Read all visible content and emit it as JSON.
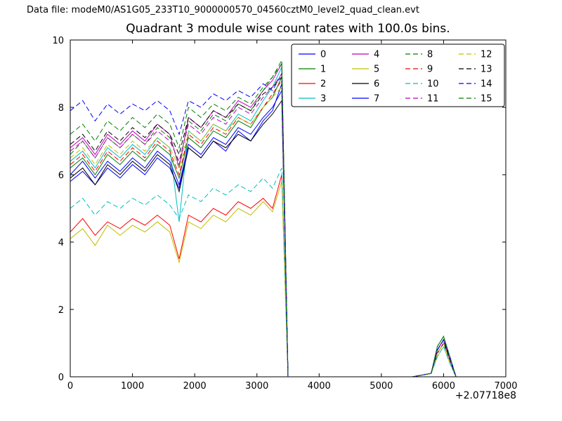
{
  "header": {
    "data_file_label": "Data file: modeM0/AS1G05_233T10_9000000570_04560cztM0_level2_quad_clean.evt"
  },
  "chart_data": {
    "type": "line",
    "title": "Quadrant 3 module wise count rates with 100.0s bins.",
    "xlabel": "",
    "ylabel": "",
    "x_offset_label": "+2.07718e8",
    "xlim": [
      0,
      7000
    ],
    "ylim": [
      0,
      10
    ],
    "xticks": [
      0,
      1000,
      2000,
      3000,
      4000,
      5000,
      6000,
      7000
    ],
    "yticks": [
      0,
      2,
      4,
      6,
      8,
      10
    ],
    "grid": false,
    "legend_position": "upper center-right",
    "legend_columns": 4,
    "axes_color": "#000000",
    "background_color": "#ffffff",
    "x": [
      0,
      200,
      400,
      600,
      800,
      1000,
      1200,
      1400,
      1600,
      1750,
      1900,
      2100,
      2300,
      2500,
      2700,
      2900,
      3100,
      3250,
      3400,
      3500,
      4000,
      4500,
      5000,
      5500,
      5800,
      5900,
      6000,
      6100,
      6200
    ],
    "series": [
      {
        "name": "0",
        "color": "#0000ff",
        "dash": "solid",
        "values": [
          5.8,
          6.1,
          5.7,
          6.2,
          5.9,
          6.3,
          6.0,
          6.5,
          6.2,
          5.6,
          6.8,
          6.5,
          7.0,
          6.7,
          7.3,
          7.0,
          7.6,
          7.9,
          8.7,
          0,
          0,
          0,
          0,
          0,
          0.1,
          0.8,
          1.1,
          0.5,
          0
        ]
      },
      {
        "name": "1",
        "color": "#008000",
        "dash": "solid",
        "values": [
          6.2,
          6.5,
          6.0,
          6.6,
          6.3,
          6.7,
          6.4,
          6.9,
          6.6,
          5.9,
          7.1,
          6.8,
          7.3,
          7.1,
          7.6,
          7.4,
          8.0,
          8.3,
          8.9,
          0,
          0,
          0,
          0,
          0,
          0.1,
          0.9,
          1.2,
          0.6,
          0
        ]
      },
      {
        "name": "2",
        "color": "#ff0000",
        "dash": "solid",
        "values": [
          4.3,
          4.7,
          4.2,
          4.6,
          4.4,
          4.7,
          4.5,
          4.8,
          4.5,
          3.5,
          4.8,
          4.6,
          5.0,
          4.8,
          5.2,
          5.0,
          5.3,
          5.0,
          6.0,
          0,
          0,
          0,
          0,
          0,
          0.1,
          0.7,
          1.0,
          0.5,
          0
        ]
      },
      {
        "name": "3",
        "color": "#00bfbf",
        "dash": "solid",
        "values": [
          6.4,
          6.7,
          6.2,
          6.8,
          6.5,
          6.9,
          6.6,
          7.1,
          6.8,
          4.6,
          7.3,
          7.0,
          7.5,
          7.3,
          7.8,
          7.6,
          8.2,
          8.6,
          9.2,
          0,
          0,
          0,
          0,
          0,
          0.1,
          0.9,
          1.2,
          0.6,
          0
        ]
      },
      {
        "name": "4",
        "color": "#bf00bf",
        "dash": "solid",
        "values": [
          6.8,
          7.1,
          6.6,
          7.2,
          6.9,
          7.3,
          7.0,
          7.5,
          7.2,
          6.2,
          7.7,
          7.4,
          7.9,
          7.7,
          8.2,
          8.0,
          8.5,
          8.8,
          9.3,
          0,
          0,
          0,
          0,
          0,
          0.1,
          0.8,
          1.1,
          0.6,
          0
        ]
      },
      {
        "name": "5",
        "color": "#bfbf00",
        "dash": "solid",
        "values": [
          4.1,
          4.4,
          3.9,
          4.5,
          4.2,
          4.5,
          4.3,
          4.6,
          4.3,
          3.4,
          4.6,
          4.4,
          4.8,
          4.6,
          5.0,
          4.8,
          5.2,
          4.9,
          5.8,
          0,
          0,
          0,
          0,
          0,
          0.1,
          0.6,
          0.9,
          0.4,
          0
        ]
      },
      {
        "name": "6",
        "color": "#000000",
        "dash": "solid",
        "values": [
          5.9,
          6.2,
          5.7,
          6.3,
          6.0,
          6.4,
          6.1,
          6.6,
          6.3,
          5.5,
          6.8,
          6.5,
          7.0,
          6.8,
          7.2,
          7.0,
          7.5,
          7.8,
          8.2,
          0,
          0,
          0,
          0,
          0,
          0.1,
          0.7,
          1.0,
          0.5,
          0
        ]
      },
      {
        "name": "7",
        "color": "#0000ff",
        "dash": "solid",
        "values": [
          6.0,
          6.4,
          5.9,
          6.4,
          6.1,
          6.5,
          6.2,
          6.7,
          6.4,
          5.7,
          6.9,
          6.6,
          7.1,
          6.9,
          7.4,
          7.2,
          7.7,
          8.0,
          8.5,
          0,
          0,
          0,
          0,
          0,
          0.1,
          0.8,
          1.1,
          0.5,
          0
        ]
      },
      {
        "name": "8",
        "color": "#008000",
        "dash": "dashed",
        "values": [
          6.6,
          7.0,
          6.5,
          7.1,
          6.8,
          7.2,
          6.9,
          7.4,
          7.1,
          6.3,
          7.6,
          7.3,
          7.8,
          7.6,
          8.1,
          7.9,
          8.5,
          8.9,
          9.4,
          0,
          0,
          0,
          0,
          0,
          0.1,
          0.9,
          1.2,
          0.6,
          0
        ]
      },
      {
        "name": "9",
        "color": "#ff0000",
        "dash": "dashed",
        "values": [
          6.3,
          6.6,
          6.1,
          6.7,
          6.4,
          6.8,
          6.5,
          7.0,
          6.7,
          6.0,
          7.2,
          6.9,
          7.4,
          7.2,
          7.7,
          7.5,
          8.0,
          8.4,
          8.8,
          0,
          0,
          0,
          0,
          0,
          0.1,
          0.7,
          1.0,
          0.5,
          0
        ]
      },
      {
        "name": "10",
        "color": "#00bfbf",
        "dash": "dashed",
        "values": [
          5.0,
          5.3,
          4.8,
          5.2,
          5.0,
          5.3,
          5.1,
          5.4,
          5.1,
          4.7,
          5.4,
          5.2,
          5.6,
          5.4,
          5.7,
          5.5,
          5.9,
          5.6,
          6.2,
          0,
          0,
          0,
          0,
          0,
          0.1,
          0.6,
          0.9,
          0.4,
          0
        ]
      },
      {
        "name": "11",
        "color": "#bf00bf",
        "dash": "dashed",
        "values": [
          6.7,
          7.0,
          6.5,
          7.1,
          6.8,
          7.2,
          6.9,
          7.3,
          7.0,
          6.4,
          7.5,
          7.2,
          7.7,
          7.5,
          8.0,
          7.8,
          8.3,
          8.6,
          9.0,
          0,
          0,
          0,
          0,
          0,
          0.1,
          0.8,
          1.1,
          0.5,
          0
        ]
      },
      {
        "name": "12",
        "color": "#bfbf00",
        "dash": "dashed",
        "values": [
          6.5,
          6.8,
          6.3,
          6.9,
          6.6,
          7.0,
          6.7,
          7.1,
          6.8,
          6.2,
          7.3,
          7.0,
          7.5,
          7.3,
          7.7,
          7.5,
          8.0,
          8.3,
          8.6,
          0,
          0,
          0,
          0,
          0,
          0.1,
          0.7,
          1.0,
          0.5,
          0
        ]
      },
      {
        "name": "13",
        "color": "#000000",
        "dash": "dashed",
        "values": [
          6.9,
          7.2,
          6.7,
          7.3,
          7.0,
          7.4,
          7.1,
          7.5,
          7.2,
          6.6,
          7.7,
          7.4,
          7.9,
          7.7,
          8.1,
          7.9,
          8.4,
          8.6,
          8.9,
          0,
          0,
          0,
          0,
          0,
          0.1,
          0.8,
          1.1,
          0.5,
          0
        ]
      },
      {
        "name": "14",
        "color": "#0000ff",
        "dash": "dashed",
        "values": [
          7.9,
          8.2,
          7.6,
          8.1,
          7.8,
          8.1,
          7.9,
          8.2,
          7.9,
          7.2,
          8.2,
          8.0,
          8.4,
          8.2,
          8.5,
          8.3,
          8.7,
          8.5,
          9.0,
          0,
          0,
          0,
          0,
          0,
          0.1,
          0.8,
          1.1,
          0.6,
          0
        ]
      },
      {
        "name": "15",
        "color": "#008000",
        "dash": "dashed",
        "values": [
          7.2,
          7.5,
          7.0,
          7.6,
          7.3,
          7.7,
          7.4,
          7.8,
          7.5,
          6.8,
          8.0,
          7.7,
          8.1,
          7.9,
          8.3,
          8.1,
          8.6,
          8.9,
          9.3,
          0,
          0,
          0,
          0,
          0,
          0.1,
          0.9,
          1.2,
          0.6,
          0
        ]
      }
    ]
  }
}
